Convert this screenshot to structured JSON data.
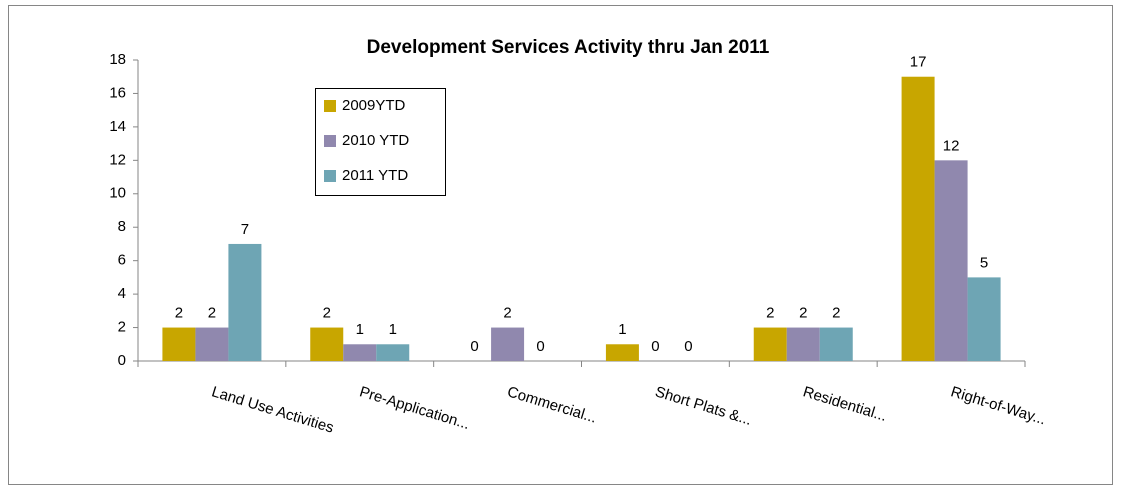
{
  "chart_data": {
    "type": "bar",
    "title": "Development Services Activity thru Jan 2011",
    "categories": [
      "Land Use Activities",
      "Pre-Application...",
      "Commercial...",
      "Short Plats &...",
      "Residential...",
      "Right-of-Way..."
    ],
    "series": [
      {
        "name": "2009YTD",
        "color": "#c8a600",
        "values": [
          2,
          2,
          0,
          1,
          2,
          17
        ]
      },
      {
        "name": "2010 YTD",
        "color": "#9088ae",
        "values": [
          2,
          1,
          2,
          0,
          2,
          12
        ]
      },
      {
        "name": "2011 YTD",
        "color": "#6ea5b4",
        "values": [
          7,
          1,
          0,
          0,
          2,
          5
        ]
      }
    ],
    "ylim": [
      0,
      18
    ],
    "yticks": [
      0,
      2,
      4,
      6,
      8,
      10,
      12,
      14,
      16,
      18
    ],
    "grid": false,
    "data_labels": true,
    "legend": "upper left"
  }
}
